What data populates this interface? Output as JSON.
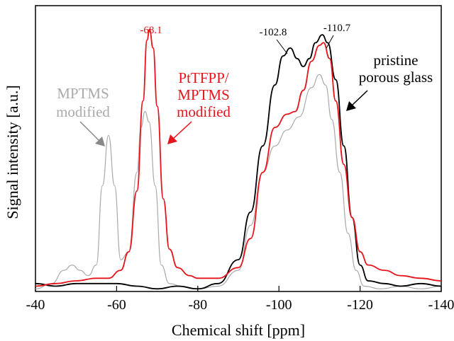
{
  "chart_data": {
    "type": "line",
    "xlabel": "Chemical shift [ppm]",
    "ylabel": "Signal intensity [a.u.]",
    "xlim": [
      -40,
      -140
    ],
    "ylim": [
      0,
      1.08
    ],
    "x_ticks": [
      -40,
      -60,
      -80,
      -100,
      -120,
      -140
    ],
    "x_tick_labels": [
      "-40",
      "-60",
      "-80",
      "-100",
      "-120",
      "-140"
    ],
    "grid": false,
    "series": [
      {
        "name": "pristine porous glass",
        "color": "#000000",
        "points": [
          [
            -40,
            0.03
          ],
          [
            -45,
            0.02
          ],
          [
            -50,
            0.03
          ],
          [
            -55,
            0.03
          ],
          [
            -60,
            0.03
          ],
          [
            -65,
            0.02
          ],
          [
            -70,
            0.01
          ],
          [
            -75,
            0.02
          ],
          [
            -80,
            0.01
          ],
          [
            -85,
            0.03
          ],
          [
            -90,
            0.12
          ],
          [
            -93,
            0.3
          ],
          [
            -96,
            0.55
          ],
          [
            -99,
            0.78
          ],
          [
            -101,
            0.89
          ],
          [
            -102.8,
            0.92
          ],
          [
            -104.5,
            0.88
          ],
          [
            -106,
            0.85
          ],
          [
            -107.5,
            0.88
          ],
          [
            -109,
            0.94
          ],
          [
            -110.7,
            0.97
          ],
          [
            -112,
            0.94
          ],
          [
            -114,
            0.8
          ],
          [
            -116,
            0.55
          ],
          [
            -118,
            0.28
          ],
          [
            -120,
            0.1
          ],
          [
            -122,
            0.04
          ],
          [
            -126,
            0.03
          ],
          [
            -130,
            0.02
          ],
          [
            -135,
            0.03
          ],
          [
            -140,
            0.02
          ]
        ]
      },
      {
        "name": "PtTFPP/ MPTMS modified",
        "color": "#e8141b",
        "points": [
          [
            -40,
            0.02
          ],
          [
            -45,
            0.03
          ],
          [
            -50,
            0.04
          ],
          [
            -55,
            0.05
          ],
          [
            -58,
            0.05
          ],
          [
            -61,
            0.08
          ],
          [
            -63,
            0.15
          ],
          [
            -65,
            0.38
          ],
          [
            -66.5,
            0.72
          ],
          [
            -67.5,
            0.95
          ],
          [
            -68.1,
            0.99
          ],
          [
            -69,
            0.92
          ],
          [
            -70,
            0.7
          ],
          [
            -71.5,
            0.35
          ],
          [
            -73,
            0.16
          ],
          [
            -75,
            0.09
          ],
          [
            -78,
            0.06
          ],
          [
            -80,
            0.05
          ],
          [
            -85,
            0.05
          ],
          [
            -90,
            0.09
          ],
          [
            -93,
            0.2
          ],
          [
            -96,
            0.45
          ],
          [
            -99,
            0.62
          ],
          [
            -102,
            0.67
          ],
          [
            -104,
            0.68
          ],
          [
            -106,
            0.76
          ],
          [
            -108,
            0.87
          ],
          [
            -110,
            0.93
          ],
          [
            -111,
            0.94
          ],
          [
            -112.5,
            0.88
          ],
          [
            -114,
            0.72
          ],
          [
            -116,
            0.48
          ],
          [
            -118,
            0.28
          ],
          [
            -120,
            0.15
          ],
          [
            -122,
            0.1
          ],
          [
            -126,
            0.08
          ],
          [
            -130,
            0.06
          ],
          [
            -135,
            0.05
          ],
          [
            -140,
            0.04
          ]
        ]
      },
      {
        "name": "MPTMS modified",
        "color": "#aaaaaa",
        "points": [
          [
            -40,
            0.01
          ],
          [
            -44,
            0.03
          ],
          [
            -47,
            0.08
          ],
          [
            -49,
            0.1
          ],
          [
            -51,
            0.08
          ],
          [
            -53,
            0.06
          ],
          [
            -55,
            0.1
          ],
          [
            -56.5,
            0.4
          ],
          [
            -58,
            0.59
          ],
          [
            -59.5,
            0.4
          ],
          [
            -61,
            0.12
          ],
          [
            -63,
            0.15
          ],
          [
            -65,
            0.45
          ],
          [
            -66,
            0.62
          ],
          [
            -67,
            0.68
          ],
          [
            -68,
            0.64
          ],
          [
            -69.5,
            0.4
          ],
          [
            -71,
            0.1
          ],
          [
            -73,
            0.03
          ],
          [
            -76,
            0.02
          ],
          [
            -80,
            0.01
          ],
          [
            -85,
            0.02
          ],
          [
            -90,
            0.08
          ],
          [
            -93,
            0.25
          ],
          [
            -96,
            0.45
          ],
          [
            -99,
            0.55
          ],
          [
            -102,
            0.61
          ],
          [
            -105,
            0.66
          ],
          [
            -108,
            0.77
          ],
          [
            -110,
            0.82
          ],
          [
            -111.5,
            0.78
          ],
          [
            -113,
            0.65
          ],
          [
            -115,
            0.45
          ],
          [
            -117,
            0.22
          ],
          [
            -119,
            0.08
          ],
          [
            -121,
            0.02
          ],
          [
            -125,
            0.01
          ],
          [
            -130,
            0.02
          ],
          [
            -135,
            0.01
          ],
          [
            -140,
            0.02
          ]
        ]
      }
    ],
    "annotations": {
      "peak_mptms_label": "-68.1",
      "peak_pristine_a_label": "-102.8",
      "peak_pristine_b_label": "-110.7",
      "mptms_label_lines": [
        "MPTMS",
        "modified"
      ],
      "pttfpp_label_lines": [
        "PtTFPP/",
        "MPTMS",
        "modified"
      ],
      "pristine_label_lines": [
        "pristine",
        "porous glass"
      ]
    }
  }
}
